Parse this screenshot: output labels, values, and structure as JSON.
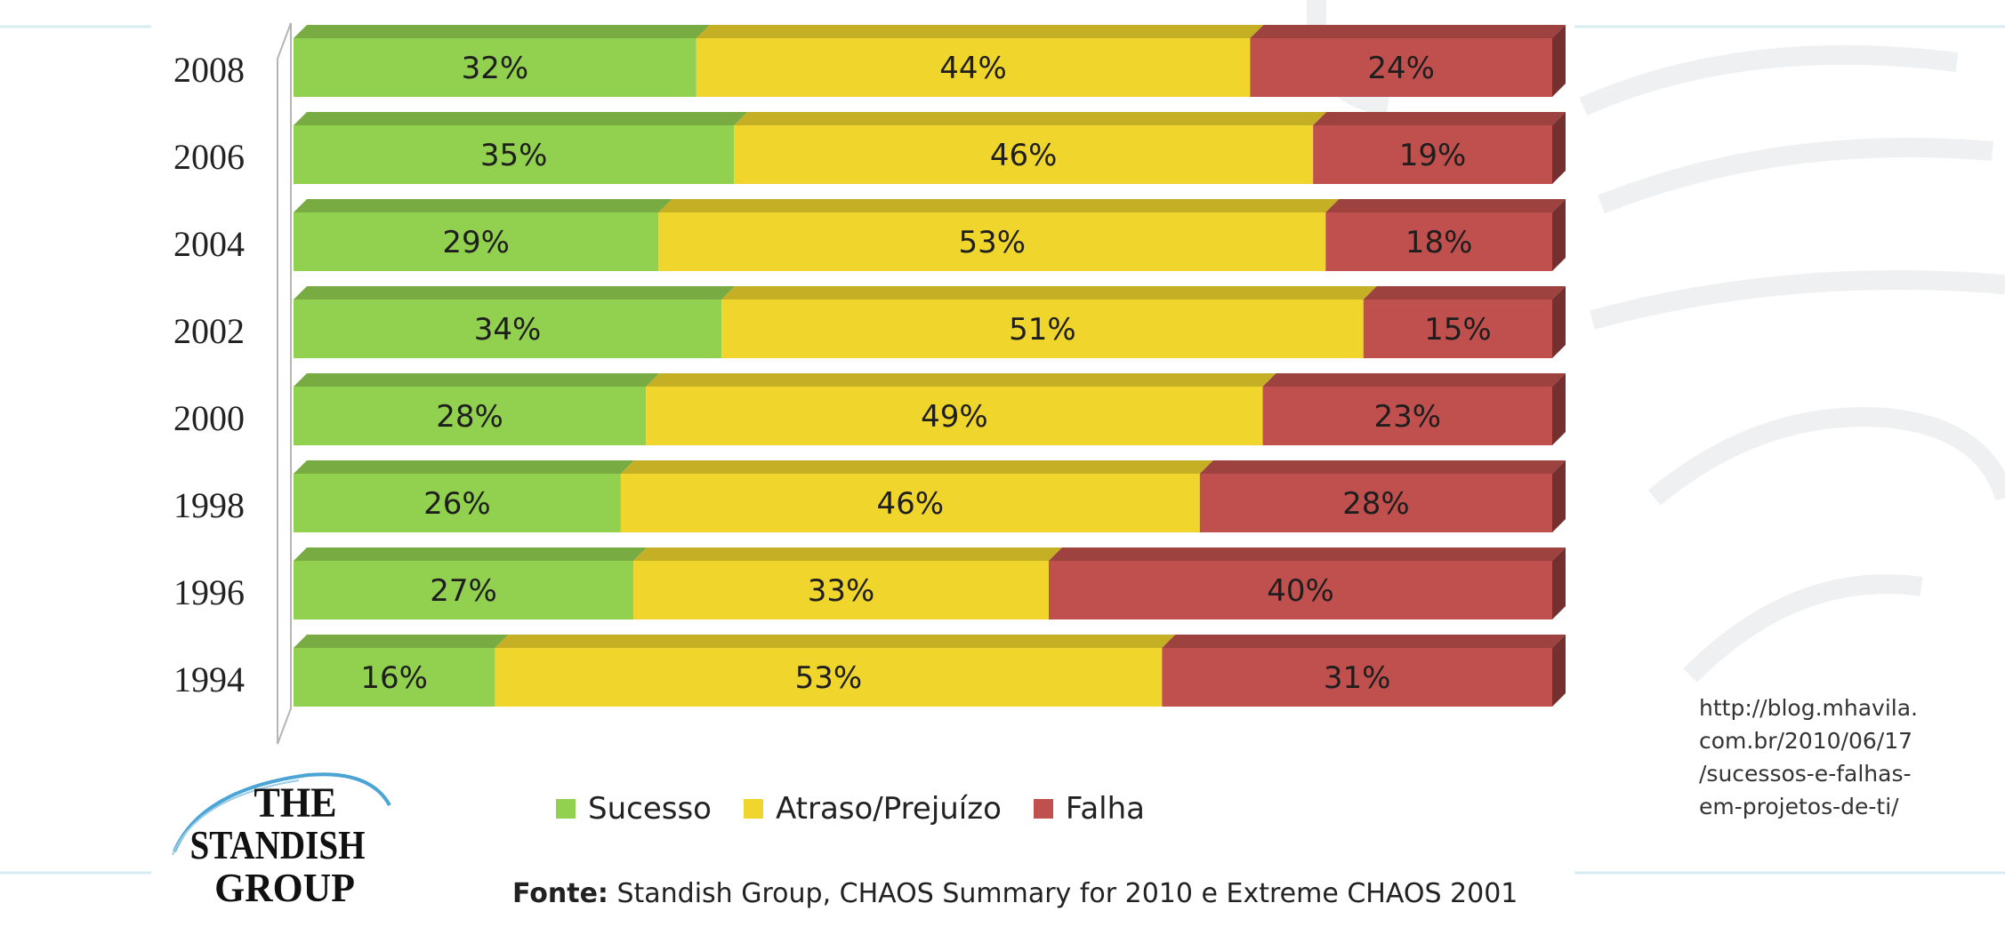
{
  "chart_data": {
    "type": "bar",
    "orientation": "horizontal",
    "stacked": true,
    "stacked_percent": true,
    "categories": [
      "2008",
      "2006",
      "2004",
      "2002",
      "2000",
      "1998",
      "1996",
      "1994"
    ],
    "series": [
      {
        "name": "Sucesso",
        "color": "#92d050",
        "values": [
          32,
          35,
          29,
          34,
          28,
          26,
          27,
          16
        ],
        "labels": [
          "32%",
          "35%",
          "29%",
          "34%",
          "28%",
          "26%",
          "27%",
          "16%"
        ]
      },
      {
        "name": "Atraso/Prejuízo",
        "color": "#f0d62c",
        "values": [
          44,
          46,
          53,
          51,
          49,
          46,
          33,
          53
        ],
        "labels": [
          "44%",
          "46%",
          "53%",
          "51%",
          "49%",
          "46%",
          "33%",
          "53%"
        ]
      },
      {
        "name": "Falha",
        "color": "#c0504d",
        "values": [
          24,
          19,
          18,
          15,
          23,
          28,
          40,
          31
        ],
        "labels": [
          "24%",
          "19%",
          "18%",
          "15%",
          "23%",
          "28%",
          "40%",
          "31%"
        ]
      }
    ],
    "xlim": [
      0,
      100
    ],
    "legend": "bottom",
    "grid": false,
    "style": "3d"
  },
  "source": {
    "prefix": "Fonte:",
    "text": " Standish Group, CHAOS Summary for 2010  e Extreme CHAOS 2001"
  },
  "url_note": [
    "http://blog.mhavila.",
    "com.br/2010/06/17",
    "/sucessos-e-falhas-",
    "em-projetos-de-ti/"
  ],
  "logo": {
    "line1": "THE",
    "line2": "STANDISH",
    "line3": "GROUP"
  }
}
